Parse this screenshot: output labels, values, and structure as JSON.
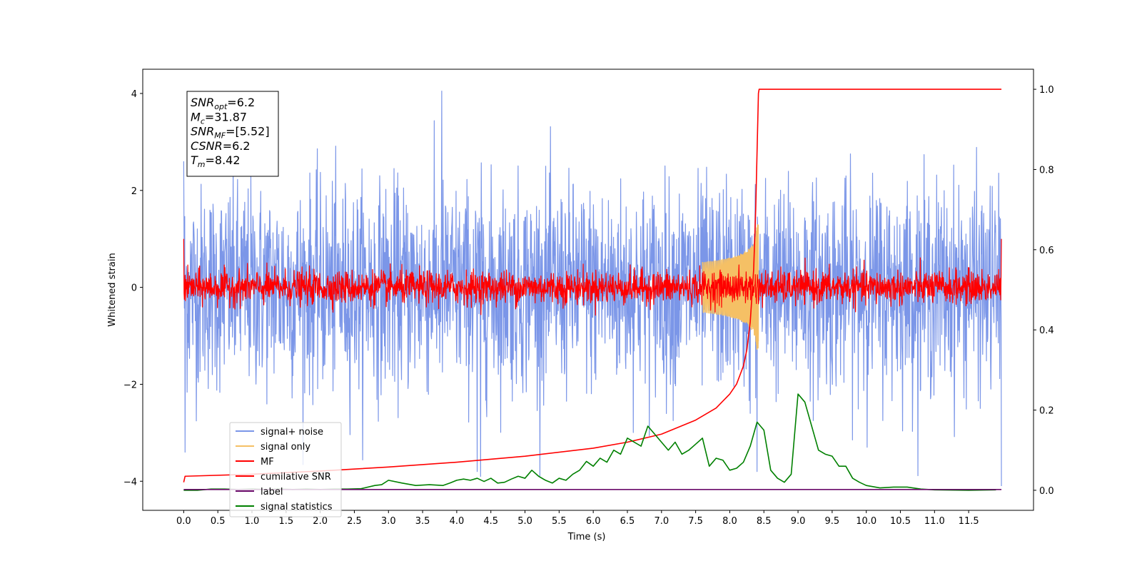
{
  "chart_data": {
    "type": "line",
    "xlabel": "Time (s)",
    "ylabel": "Whitened strain",
    "xlim": [
      -0.6,
      12.45
    ],
    "ylim_left": [
      -4.6,
      4.5
    ],
    "ylim_right": [
      -0.05,
      1.05
    ],
    "x_ticks": [
      0.0,
      0.5,
      1.0,
      1.5,
      2.0,
      2.5,
      3.0,
      3.5,
      4.0,
      4.5,
      5.0,
      5.5,
      6.0,
      6.5,
      7.0,
      7.5,
      8.0,
      8.5,
      9.0,
      9.5,
      10.0,
      10.5,
      11.0,
      11.5
    ],
    "x_tick_labels": [
      "0.0",
      "0.5",
      "1.0",
      "1.5",
      "2.0",
      "2.5",
      "3.0",
      "3.5",
      "4.0",
      "4.5",
      "5.0",
      "5.5",
      "6.0",
      "6.5",
      "7.0",
      "7.5",
      "8.0",
      "8.5",
      "9.0",
      "9.5",
      "10.0",
      "10.5",
      "11.0",
      "11.5"
    ],
    "y_left_ticks": [
      -4,
      -2,
      0,
      2,
      4
    ],
    "y_left_tick_labels": [
      "−4",
      "−2",
      "0",
      "2",
      "4"
    ],
    "y_right_ticks": [
      0.0,
      0.2,
      0.4,
      0.6,
      0.8,
      1.0
    ],
    "y_right_tick_labels": [
      "0.0",
      "0.2",
      "0.4",
      "0.6",
      "0.8",
      "1.0"
    ],
    "grid": false,
    "legend_position": "lower-left",
    "series": [
      {
        "name": "signal+ noise",
        "axis": "left",
        "color": "#7b96e8",
        "style": "noise",
        "x_range": [
          0.0,
          11.98
        ],
        "std": 1.05,
        "sample_count": 2400,
        "peak_values": [
          [
            0.0,
            2.6
          ],
          [
            0.02,
            -3.4
          ],
          [
            3.78,
            4.05
          ],
          [
            4.3,
            -3.8
          ],
          [
            4.35,
            -3.9
          ],
          [
            8.3,
            -2.6
          ],
          [
            8.4,
            -3.8
          ],
          [
            11.98,
            -4.1
          ]
        ]
      },
      {
        "name": "signal only",
        "axis": "left",
        "color": "#f5c065",
        "style": "chirp",
        "x_range": [
          7.6,
          8.45
        ],
        "peak_amplitude": 1.3,
        "peak_time": 8.42
      },
      {
        "name": "MF",
        "axis": "left",
        "color": "#ff0000",
        "style": "noise",
        "x_range": [
          0.0,
          11.98
        ],
        "std": 0.17,
        "sample_count": 2400,
        "end_values": [
          [
            0.0,
            1.0
          ],
          [
            11.98,
            1.0
          ]
        ]
      },
      {
        "name": "cumilative SNR",
        "axis": "right",
        "color": "#ff0000",
        "style": "line",
        "x": [
          0.0,
          0.02,
          1.0,
          2.0,
          3.0,
          4.0,
          5.0,
          6.0,
          6.5,
          7.0,
          7.5,
          7.8,
          8.0,
          8.1,
          8.2,
          8.25,
          8.3,
          8.35,
          8.38,
          8.42,
          8.43,
          11.98
        ],
        "y": [
          0.02,
          0.035,
          0.04,
          0.048,
          0.058,
          0.07,
          0.085,
          0.105,
          0.12,
          0.14,
          0.175,
          0.205,
          0.24,
          0.265,
          0.31,
          0.35,
          0.42,
          0.55,
          0.7,
          0.99,
          1.0,
          1.0
        ]
      },
      {
        "name": "label",
        "axis": "right",
        "color": "#6a0a6a",
        "style": "line",
        "x": [
          0.0,
          11.98
        ],
        "y": [
          0.002,
          0.002
        ]
      },
      {
        "name": "signal statistics",
        "axis": "right",
        "color": "#008000",
        "style": "line",
        "x": [
          0.0,
          0.2,
          0.4,
          0.6,
          0.8,
          1.0,
          1.2,
          1.4,
          1.6,
          1.8,
          2.0,
          2.2,
          2.4,
          2.6,
          2.8,
          2.9,
          3.0,
          3.2,
          3.4,
          3.6,
          3.8,
          3.9,
          4.0,
          4.1,
          4.2,
          4.3,
          4.4,
          4.5,
          4.6,
          4.7,
          4.8,
          4.9,
          5.0,
          5.1,
          5.2,
          5.3,
          5.4,
          5.5,
          5.6,
          5.7,
          5.8,
          5.9,
          6.0,
          6.1,
          6.2,
          6.3,
          6.4,
          6.5,
          6.6,
          6.7,
          6.8,
          6.9,
          7.0,
          7.1,
          7.2,
          7.3,
          7.4,
          7.5,
          7.6,
          7.7,
          7.8,
          7.9,
          8.0,
          8.1,
          8.2,
          8.3,
          8.4,
          8.5,
          8.6,
          8.7,
          8.8,
          8.9,
          9.0,
          9.1,
          9.2,
          9.3,
          9.4,
          9.5,
          9.6,
          9.7,
          9.8,
          9.9,
          10.0,
          10.2,
          10.4,
          10.6,
          10.8,
          11.0,
          11.5,
          11.9
        ],
        "y": [
          0.0,
          0.0,
          0.003,
          0.003,
          0.002,
          0.003,
          0.002,
          0.003,
          0.002,
          0.003,
          0.002,
          0.003,
          0.003,
          0.004,
          0.012,
          0.014,
          0.025,
          0.018,
          0.012,
          0.014,
          0.012,
          0.018,
          0.025,
          0.028,
          0.025,
          0.03,
          0.022,
          0.03,
          0.018,
          0.02,
          0.028,
          0.035,
          0.03,
          0.05,
          0.035,
          0.025,
          0.018,
          0.03,
          0.025,
          0.04,
          0.05,
          0.072,
          0.06,
          0.08,
          0.07,
          0.1,
          0.09,
          0.13,
          0.12,
          0.11,
          0.16,
          0.14,
          0.12,
          0.1,
          0.12,
          0.09,
          0.1,
          0.115,
          0.13,
          0.06,
          0.08,
          0.075,
          0.05,
          0.055,
          0.07,
          0.11,
          0.17,
          0.15,
          0.05,
          0.03,
          0.02,
          0.04,
          0.24,
          0.22,
          0.16,
          0.1,
          0.09,
          0.085,
          0.06,
          0.06,
          0.03,
          0.02,
          0.012,
          0.006,
          0.008,
          0.008,
          0.003,
          0.001,
          0.0,
          0.001
        ]
      }
    ],
    "annotation": {
      "lines": [
        {
          "main": "SNR",
          "sub": "opt",
          "value": "=6.2"
        },
        {
          "main": "M",
          "sub": "c",
          "value": "=31.87"
        },
        {
          "main": "SNR",
          "sub": "MF",
          "value": "=[5.52]"
        },
        {
          "main": "CSNR",
          "sub": "",
          "value": "=6.2"
        },
        {
          "main": "T",
          "sub": "m",
          "value": "=8.42"
        }
      ]
    }
  }
}
